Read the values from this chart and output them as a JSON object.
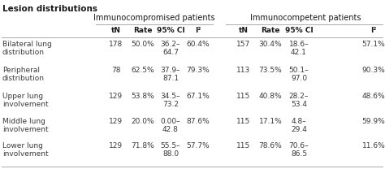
{
  "title": "Lesion distributions",
  "group1_header": "Immunocompromised patients",
  "group2_header": "Immunocompetent patients",
  "col_headers": [
    "tN",
    "Rate",
    "95% CI",
    "I²"
  ],
  "row_labels": [
    "Bilateral lung\ndistribution",
    "Peripheral\ndistribution",
    "Upper lung\ninvolvement",
    "Middle lung\ninvolvement",
    "Lower lung\ninvolvement"
  ],
  "group1_data": [
    [
      "178",
      "50.0%",
      "36.2–\n64.7",
      "60.4%"
    ],
    [
      "78",
      "62.5%",
      "37.9–\n87.1",
      "79.3%"
    ],
    [
      "129",
      "53.8%",
      "34.5–\n73.2",
      "67.1%"
    ],
    [
      "129",
      "20.0%",
      "0.00–\n42.8",
      "87.6%"
    ],
    [
      "129",
      "71.8%",
      "55.5–\n88.0",
      "57.7%"
    ]
  ],
  "group2_data": [
    [
      "157",
      "30.4%",
      "18.6–\n42.1",
      "57.1%"
    ],
    [
      "113",
      "73.5%",
      "50.1–\n97.0",
      "90.3%"
    ],
    [
      "115",
      "40.8%",
      "28.2–\n53.4",
      "48.6%"
    ],
    [
      "115",
      "17.1%",
      "4.8–\n29.4",
      "59.9%"
    ],
    [
      "115",
      "78.6%",
      "70.6–\n86.5",
      "11.6%"
    ]
  ],
  "bg_color": "#ffffff",
  "text_color": "#3a3a3a",
  "header_color": "#1a1a1a",
  "line_color": "#aaaaaa",
  "font_size": 6.5,
  "header_font_size": 7.0,
  "title_font_size": 7.5
}
